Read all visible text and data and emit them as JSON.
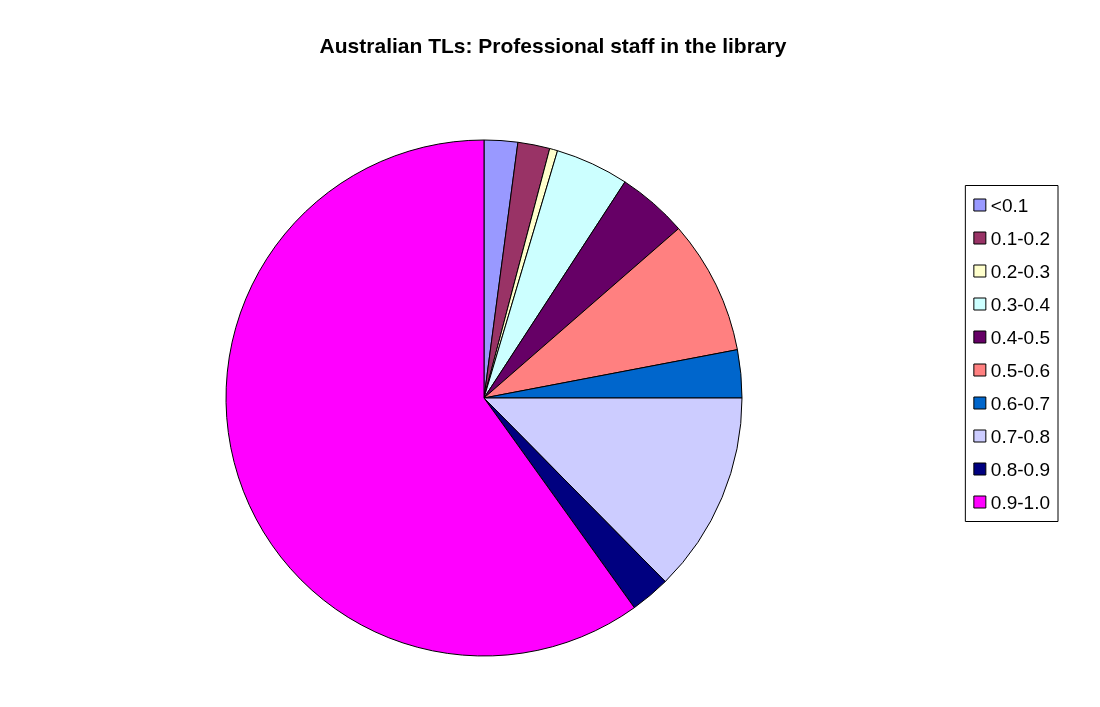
{
  "chart_data": {
    "type": "pie",
    "title": "Australian TLs: Professional staff in the library",
    "categories": [
      "<0.1",
      "0.1-0.2",
      "0.2-0.3",
      "0.3-0.4",
      "0.4-0.5",
      "0.5-0.6",
      "0.6-0.7",
      "0.7-0.8",
      "0.8-0.9",
      "0.9-1.0"
    ],
    "values": [
      2.1,
      2.0,
      0.5,
      4.6,
      4.4,
      8.4,
      3.0,
      12.6,
      2.5,
      59.9
    ],
    "colors": [
      "#9999ff",
      "#993366",
      "#ffffcc",
      "#ccffff",
      "#660066",
      "#ff8080",
      "#0066cc",
      "#ccccff",
      "#000080",
      "#ff00ff"
    ],
    "legend": "right"
  }
}
